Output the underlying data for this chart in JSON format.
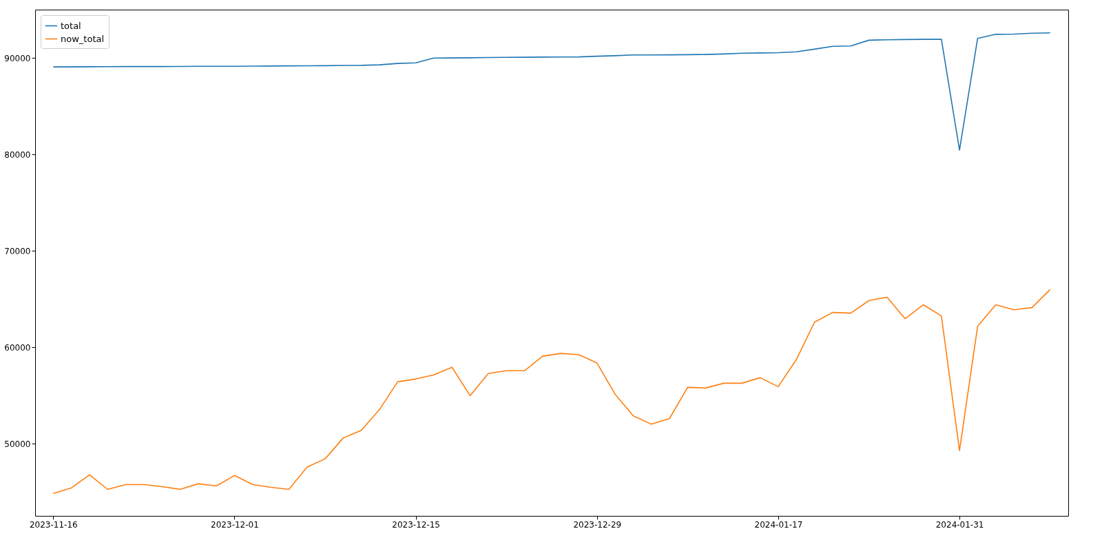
{
  "chart_data": {
    "type": "line",
    "categories": [
      "2023-11-16",
      null,
      null,
      null,
      null,
      null,
      null,
      null,
      null,
      null,
      "2023-12-01",
      null,
      null,
      null,
      null,
      null,
      null,
      null,
      null,
      null,
      "2023-12-15",
      null,
      null,
      null,
      null,
      null,
      null,
      null,
      null,
      null,
      "2023-12-29",
      null,
      null,
      null,
      null,
      null,
      null,
      null,
      null,
      null,
      "2024-01-17",
      null,
      null,
      null,
      null,
      null,
      null,
      null,
      null,
      null,
      "2024-01-31",
      null,
      null,
      null,
      null,
      null
    ],
    "ylim": [
      42500,
      95000
    ],
    "yticks": [
      50000,
      60000,
      70000,
      80000,
      90000
    ],
    "grid": false,
    "legend": "top left",
    "line_style": "solid",
    "marker": "none",
    "series": [
      {
        "name": "total",
        "color": "#1f77b4",
        "values": [
          89060,
          89060,
          89080,
          89090,
          89100,
          89100,
          89100,
          89110,
          89120,
          89120,
          89130,
          89140,
          89150,
          89170,
          89180,
          89190,
          89210,
          89220,
          89280,
          89420,
          89480,
          89980,
          89990,
          90010,
          90040,
          90050,
          90060,
          90080,
          90090,
          90100,
          90170,
          90220,
          90300,
          90300,
          90310,
          90330,
          90350,
          90400,
          90480,
          90510,
          90540,
          90620,
          90900,
          91200,
          91230,
          91830,
          91880,
          91900,
          91920,
          91930,
          80430,
          92020,
          92440,
          92460,
          92550,
          92590
        ]
      },
      {
        "name": "now_total",
        "color": "#ff7f0e",
        "values": [
          44820,
          45400,
          46760,
          45250,
          45750,
          45750,
          45540,
          45250,
          45830,
          45610,
          46690,
          45750,
          45470,
          45250,
          47550,
          48420,
          50580,
          51370,
          53530,
          56400,
          56690,
          57120,
          57910,
          54960,
          57270,
          57550,
          57550,
          59060,
          59350,
          59210,
          58350,
          55110,
          52880,
          52010,
          52590,
          55830,
          55760,
          56260,
          56260,
          56830,
          55900,
          58710,
          62590,
          63600,
          63530,
          64820,
          65180,
          62950,
          64390,
          63240,
          49280,
          62160,
          64390,
          63880,
          64100,
          65970
        ]
      }
    ]
  }
}
